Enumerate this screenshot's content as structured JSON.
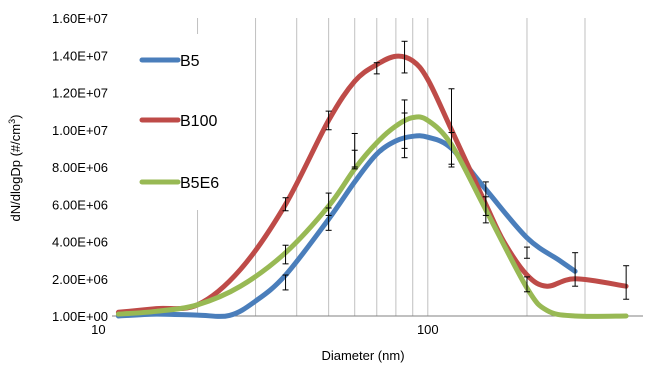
{
  "chart_data": {
    "type": "line",
    "title": "",
    "xlabel": "Diameter (nm)",
    "ylabel_main": "dN/dlogDp (#/cm",
    "ylabel_sup": "3",
    "ylabel_close": ")",
    "x_scale": "log",
    "xlim": [
      11,
      450
    ],
    "ylim": [
      1,
      16000000
    ],
    "y_ticks": [
      1,
      2000000,
      4000000,
      6000000,
      8000000,
      10000000,
      12000000,
      14000000,
      16000000
    ],
    "y_tick_labels": [
      "1.00E+00",
      "2.00E+06",
      "4.00E+06",
      "6.00E+06",
      "8.00E+06",
      "1.00E+07",
      "1.20E+07",
      "1.40E+07",
      "1.60E+07"
    ],
    "x_ticks": [
      10,
      100
    ],
    "x_tick_labels": [
      "10",
      "100"
    ],
    "x_grid": [
      20,
      30,
      40,
      50,
      60,
      70,
      80,
      90,
      100,
      200,
      300
    ],
    "grid": "vertical",
    "legend": "left",
    "series": [
      {
        "name": "B5",
        "color": "#4a7ebb",
        "x": [
          11.5,
          15,
          20,
          25,
          30,
          37,
          50,
          60,
          70,
          80,
          90,
          100,
          118,
          150,
          200,
          250,
          280
        ],
        "y": [
          1,
          100000,
          50000,
          30000,
          800000,
          2200000,
          5200000,
          7200000,
          8700000,
          9400000,
          9650000,
          9600000,
          9000000,
          6800000,
          4200000,
          3000000,
          2400000
        ]
      },
      {
        "name": "B100",
        "color": "#be4b48",
        "x": [
          11.5,
          15,
          20,
          27,
          37,
          50,
          60,
          70,
          80,
          90,
          100,
          118,
          150,
          170,
          200,
          230,
          280,
          400
        ],
        "y": [
          200000,
          400000,
          600000,
          2500000,
          6000000,
          10500000,
          12600000,
          13500000,
          13950000,
          13700000,
          12700000,
          10000000,
          6000000,
          4000000,
          2200000,
          1600000,
          2000000,
          1600000
        ]
      },
      {
        "name": "B5E6",
        "color": "#98b954",
        "x": [
          11.5,
          15,
          20,
          27,
          37,
          50,
          60,
          70,
          80,
          90,
          100,
          118,
          150,
          200,
          230,
          280,
          400
        ],
        "y": [
          100000,
          250000,
          600000,
          1600000,
          3400000,
          5900000,
          7900000,
          9300000,
          10200000,
          10650000,
          10500000,
          9200000,
          5700000,
          1500000,
          300000,
          0,
          0
        ]
      }
    ],
    "error_bars": [
      {
        "x": 37,
        "y": 1800000,
        "err": 400000
      },
      {
        "x": 37,
        "y": 3300000,
        "err": 500000
      },
      {
        "x": 37,
        "y": 6000000,
        "err": 350000
      },
      {
        "x": 50,
        "y": 5200000,
        "err": 600000
      },
      {
        "x": 50,
        "y": 6000000,
        "err": 600000
      },
      {
        "x": 50,
        "y": 10500000,
        "err": 500000
      },
      {
        "x": 60,
        "y": 8400000,
        "err": 500000
      },
      {
        "x": 60,
        "y": 8900000,
        "err": 900000
      },
      {
        "x": 70,
        "y": 13300000,
        "err": 300000
      },
      {
        "x": 85,
        "y": 13900000,
        "err": 850000
      },
      {
        "x": 85,
        "y": 10300000,
        "err": 1300000
      },
      {
        "x": 85,
        "y": 9700000,
        "err": 1200000
      },
      {
        "x": 118,
        "y": 10100000,
        "err": 2100000
      },
      {
        "x": 118,
        "y": 9000000,
        "err": 850000
      },
      {
        "x": 150,
        "y": 6300000,
        "err": 900000
      },
      {
        "x": 150,
        "y": 5700000,
        "err": 700000
      },
      {
        "x": 200,
        "y": 3400000,
        "err": 300000
      },
      {
        "x": 200,
        "y": 1700000,
        "err": 400000
      },
      {
        "x": 280,
        "y": 2500000,
        "err": 900000
      },
      {
        "x": 400,
        "y": 1800000,
        "err": 900000
      }
    ]
  }
}
